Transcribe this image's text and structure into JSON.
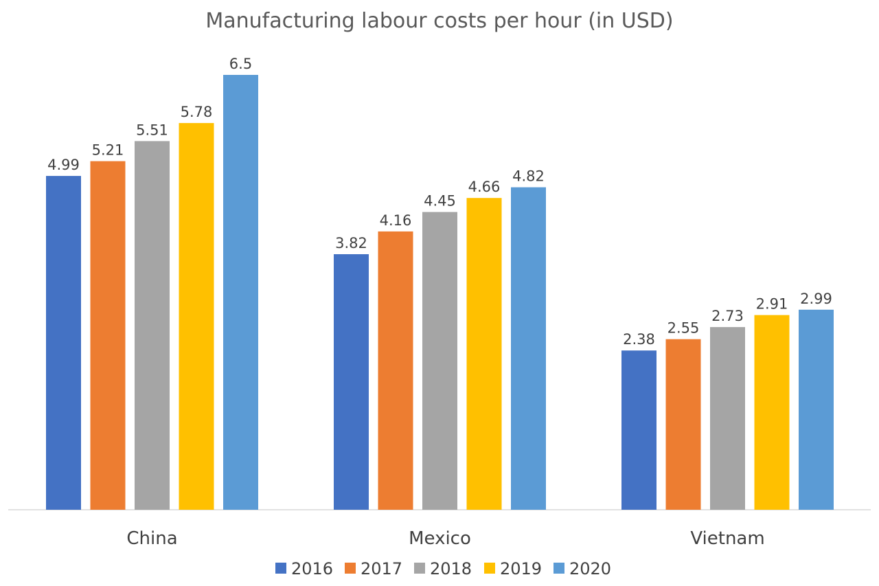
{
  "chart_data": {
    "type": "bar",
    "title": "Manufacturing labour costs per hour (in USD)",
    "categories": [
      "China",
      "Mexico",
      "Vietnam"
    ],
    "series": [
      {
        "name": "2016",
        "color": "#4472C4",
        "values": [
          4.99,
          3.82,
          2.38
        ]
      },
      {
        "name": "2017",
        "color": "#ED7D31",
        "values": [
          5.21,
          4.16,
          2.55
        ]
      },
      {
        "name": "2018",
        "color": "#A5A5A5",
        "values": [
          5.51,
          4.45,
          2.73
        ]
      },
      {
        "name": "2019",
        "color": "#FFC000",
        "values": [
          5.78,
          4.66,
          2.91
        ]
      },
      {
        "name": "2020",
        "color": "#5B9BD5",
        "values": [
          6.5,
          4.82,
          2.99
        ]
      }
    ],
    "value_labels": [
      [
        "4.99",
        "3.82",
        "2.38"
      ],
      [
        "5.21",
        "4.16",
        "2.55"
      ],
      [
        "5.51",
        "4.45",
        "2.73"
      ],
      [
        "5.78",
        "4.66",
        "2.91"
      ],
      [
        "6.5",
        "4.82",
        "2.99"
      ]
    ],
    "ylim": [
      0,
      6.5
    ],
    "grid": false,
    "legend_position": "bottom",
    "xlabel": "",
    "ylabel": ""
  }
}
